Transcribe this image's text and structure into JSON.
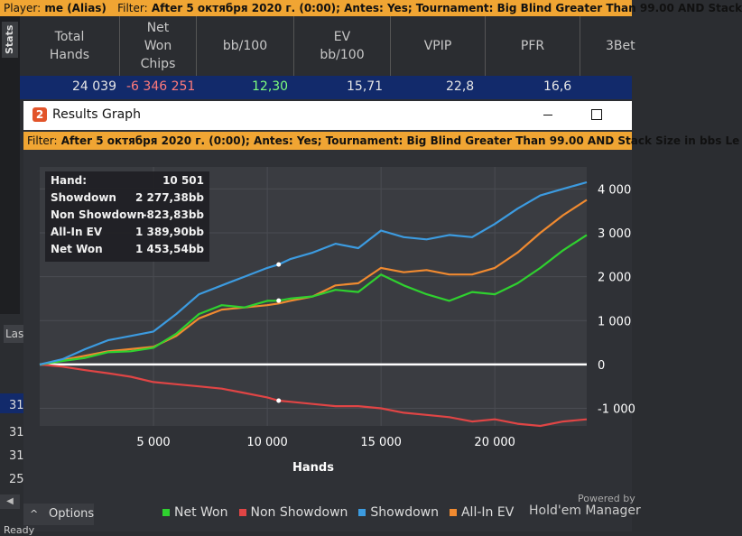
{
  "topbar": {
    "player_label": "Player:",
    "player": "me (Alias)",
    "filter_label": "Filter:",
    "filter": "After 5 октября 2020 г. (0:00); Antes: Yes; Tournament: Big Blind Greater Than 99.00 AND Stack"
  },
  "sidebar": {
    "stats_tab": "Stats",
    "las_partial": "Las"
  },
  "columns": [
    {
      "label": "Total\nHands"
    },
    {
      "label": "Net\nWon\nChips"
    },
    {
      "label": "bb/100"
    },
    {
      "label": "EV\nbb/100"
    },
    {
      "label": "VPIP"
    },
    {
      "label": "PFR"
    },
    {
      "label": "3Bet"
    }
  ],
  "row1": {
    "total_hands": "24 039",
    "net_won": "-6 346 251",
    "bb100": "12,30",
    "ev_bb100": "15,71",
    "vpip": "22,8",
    "pfr": "16,6"
  },
  "left_rows": [
    "31",
    "31",
    "31",
    "25"
  ],
  "window": {
    "title": "Results Graph",
    "logo": "2",
    "filter_label": "Filter:",
    "filter": "After 5 октября 2020 г. (0:00); Antes: Yes; Tournament: Big Blind Greater Than 99.00 AND Stack Size in bbs Le"
  },
  "tooltip": [
    {
      "key": "Hand:",
      "value": "10 501"
    },
    {
      "key": "Showdown",
      "value": "2 277,38bb"
    },
    {
      "key": "Non Showdown",
      "value": "-823,83bb"
    },
    {
      "key": "All-In EV",
      "value": "1 389,90bb"
    },
    {
      "key": "Net Won",
      "value": "1 453,54bb"
    }
  ],
  "colors": {
    "net_won": "#2fd12f",
    "non_showdown": "#e04545",
    "showdown": "#3c9be0",
    "allin_ev": "#f08a30"
  },
  "chart_data": {
    "type": "line",
    "xlabel": "Hands",
    "ylabel": "",
    "x_ticks": [
      5000,
      10000,
      15000,
      20000
    ],
    "x_tick_labels": [
      "5 000",
      "10 000",
      "15 000",
      "20 000"
    ],
    "y_ticks": [
      4000,
      3000,
      2000,
      1000,
      0,
      -1000
    ],
    "y_tick_labels": [
      "4 000",
      "3 000",
      "2 000",
      "1 000",
      "0",
      "-1 000"
    ],
    "xlim": [
      0,
      24039
    ],
    "ylim": [
      -1400,
      4500
    ],
    "grid": true,
    "legend": "bottom",
    "x": [
      0,
      1000,
      2000,
      3000,
      4000,
      5000,
      6000,
      7000,
      8000,
      9000,
      10000,
      10501,
      11000,
      12000,
      13000,
      14000,
      15000,
      16000,
      17000,
      18000,
      19000,
      20000,
      21000,
      22000,
      23000,
      24039
    ],
    "series": [
      {
        "name": "Net Won",
        "values": [
          0,
          80,
          150,
          280,
          300,
          380,
          700,
          1150,
          1350,
          1300,
          1450,
          1454,
          1500,
          1550,
          1700,
          1650,
          2050,
          1800,
          1600,
          1450,
          1650,
          1600,
          1850,
          2200,
          2600,
          2950
        ]
      },
      {
        "name": "Non Showdown",
        "values": [
          0,
          -50,
          -130,
          -200,
          -280,
          -400,
          -450,
          -500,
          -550,
          -650,
          -750,
          -824,
          -850,
          -900,
          -950,
          -950,
          -1000,
          -1100,
          -1150,
          -1200,
          -1300,
          -1250,
          -1350,
          -1400,
          -1300,
          -1250
        ]
      },
      {
        "name": "Showdown",
        "values": [
          0,
          120,
          350,
          550,
          650,
          750,
          1150,
          1600,
          1800,
          2000,
          2200,
          2277,
          2400,
          2550,
          2750,
          2650,
          3050,
          2900,
          2850,
          2950,
          2900,
          3200,
          3550,
          3850,
          4000,
          4150
        ]
      },
      {
        "name": "All-In EV",
        "values": [
          0,
          100,
          200,
          300,
          350,
          400,
          650,
          1050,
          1250,
          1300,
          1350,
          1390,
          1450,
          1550,
          1800,
          1850,
          2200,
          2100,
          2150,
          2050,
          2050,
          2200,
          2550,
          3000,
          3400,
          3750
        ]
      }
    ]
  },
  "options": {
    "label": "Options"
  },
  "brand": {
    "powered": "Powered by",
    "name": "Hold'em Manager"
  },
  "status": {
    "ready": "Ready"
  }
}
